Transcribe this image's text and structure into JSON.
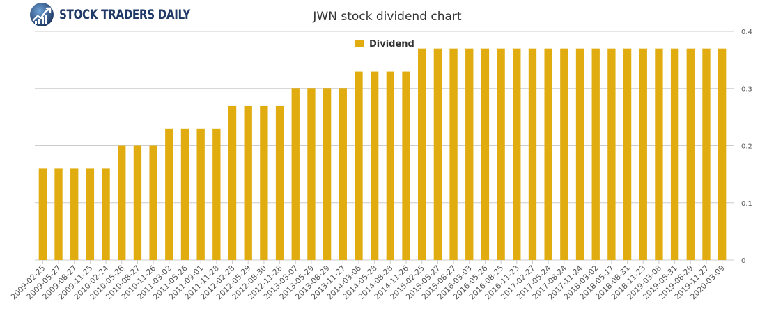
{
  "logo": {
    "text": "STOCK TRADERS DAILY"
  },
  "colors": {
    "bar": "#e0ac10",
    "grid": "#cccccc",
    "logo_blue": "#1f3a66"
  },
  "chart_data": {
    "type": "bar",
    "title": "JWN stock dividend chart",
    "xlabel": "",
    "ylabel": "",
    "ylim": [
      0,
      0.4
    ],
    "yticks": [
      0,
      0.1,
      0.2,
      0.3,
      0.4
    ],
    "grid": true,
    "legend_position": "top-center",
    "categories": [
      "2009-02-25",
      "2009-05-27",
      "2009-08-27",
      "2009-11-25",
      "2010-02-24",
      "2010-05-26",
      "2010-08-27",
      "2010-11-26",
      "2011-03-02",
      "2011-05-26",
      "2011-09-01",
      "2011-11-28",
      "2012-02-28",
      "2012-05-29",
      "2012-08-30",
      "2012-11-28",
      "2013-03-07",
      "2013-05-29",
      "2013-08-29",
      "2013-11-27",
      "2014-03-06",
      "2014-05-28",
      "2014-08-28",
      "2014-11-26",
      "2015-02-25",
      "2015-05-27",
      "2015-08-27",
      "2016-03-03",
      "2016-05-26",
      "2016-08-25",
      "2016-11-23",
      "2017-02-27",
      "2017-05-24",
      "2017-08-24",
      "2017-11-24",
      "2018-03-02",
      "2018-05-17",
      "2018-08-31",
      "2018-11-23",
      "2019-03-08",
      "2019-05-31",
      "2019-08-29",
      "2019-11-27",
      "2020-03-09"
    ],
    "series": [
      {
        "name": "Dividend",
        "values": [
          0.16,
          0.16,
          0.16,
          0.16,
          0.16,
          0.2,
          0.2,
          0.2,
          0.23,
          0.23,
          0.23,
          0.23,
          0.27,
          0.27,
          0.27,
          0.27,
          0.3,
          0.3,
          0.3,
          0.3,
          0.33,
          0.33,
          0.33,
          0.33,
          0.37,
          0.37,
          0.37,
          0.37,
          0.37,
          0.37,
          0.37,
          0.37,
          0.37,
          0.37,
          0.37,
          0.37,
          0.37,
          0.37,
          0.37,
          0.37,
          0.37,
          0.37,
          0.37,
          0.37
        ]
      }
    ]
  }
}
